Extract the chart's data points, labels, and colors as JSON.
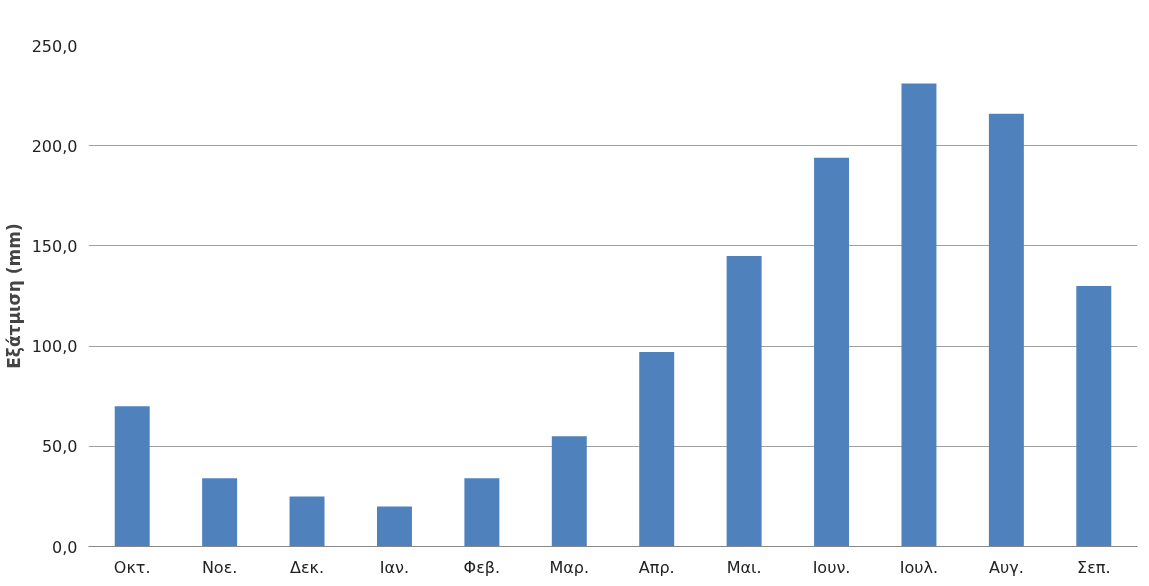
{
  "chart_data": {
    "type": "bar",
    "ylabel": "Εξάτμιση (mm)",
    "categories": [
      "Οκτ.",
      "Νοε.",
      "Δεκ.",
      "Ιαν.",
      "Φεβ.",
      "Μαρ.",
      "Απρ.",
      "Μαι.",
      "Ιουν.",
      "Ιουλ.",
      "Αυγ.",
      "Σεπ."
    ],
    "values": [
      70,
      34,
      25,
      20,
      34,
      55,
      97,
      145,
      194,
      231,
      216,
      130
    ],
    "color": "#4f81bd",
    "ylim": [
      0,
      250
    ],
    "yticks": [
      {
        "value": 0,
        "label": "0,0"
      },
      {
        "value": 50,
        "label": "50,0"
      },
      {
        "value": 100,
        "label": "100,0"
      },
      {
        "value": 150,
        "label": "150,0"
      },
      {
        "value": 200,
        "label": "200,0"
      },
      {
        "value": 250,
        "label": "250,0"
      }
    ],
    "grid": "y"
  }
}
